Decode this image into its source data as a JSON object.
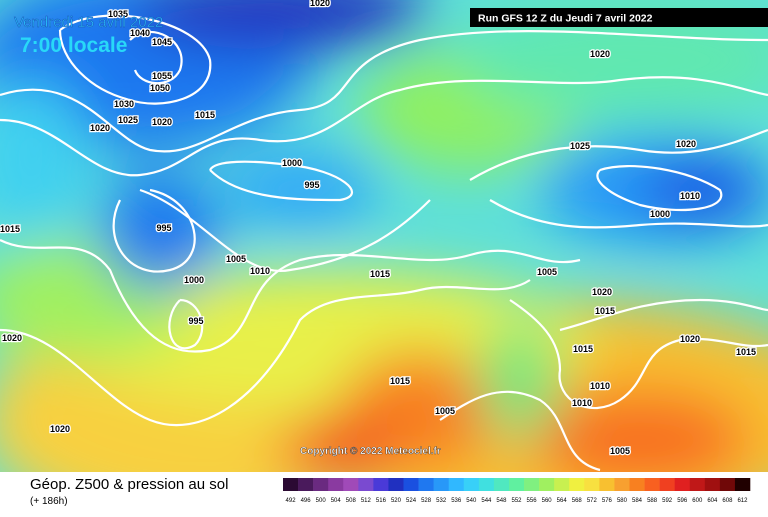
{
  "header": {
    "date": "Vendredi 15 avril 2022",
    "time": "7:00 locale",
    "run": "Run GFS 12 Z du Jeudi 7 avril 2022"
  },
  "copyright": "Copyright © 2022 Meteociel.fr",
  "footer": {
    "title": "Géop. Z500 & pression au sol",
    "lead": "(+ 186h)"
  },
  "isobar_labels": [
    "1020",
    "1035",
    "1040",
    "1045",
    "1055",
    "1050",
    "1030",
    "1025",
    "1020",
    "1015",
    "1000",
    "995",
    "995",
    "1005",
    "1010",
    "1000",
    "995",
    "1015",
    "1020",
    "1025",
    "1020",
    "1010",
    "1000",
    "1005",
    "1020",
    "1015",
    "1015",
    "1010",
    "1010",
    "1005",
    "1005",
    "1015",
    "1020",
    "1020",
    "1015",
    "1020",
    "1015",
    "1020"
  ],
  "scale": {
    "labels": [
      492,
      496,
      500,
      504,
      508,
      512,
      516,
      520,
      524,
      528,
      532,
      536,
      540,
      544,
      548,
      552,
      556,
      560,
      564,
      568,
      572,
      576,
      580,
      584,
      588,
      592,
      596,
      600,
      604,
      608,
      612
    ],
    "colors": [
      "#2b0a33",
      "#4a1a5c",
      "#6a2a80",
      "#8a3aa0",
      "#a04ab8",
      "#7a4ad0",
      "#4a3ad8",
      "#2030c0",
      "#1a50e0",
      "#1f78f0",
      "#2898f8",
      "#30b8ff",
      "#38d0f8",
      "#40e0e0",
      "#50e8c0",
      "#60f0a0",
      "#80f080",
      "#a0f060",
      "#c8f050",
      "#f0f040",
      "#f8e040",
      "#f8c030",
      "#f8a030",
      "#f88020",
      "#f86020",
      "#f04020",
      "#e02020",
      "#c01818",
      "#a01010",
      "#700808",
      "#200000"
    ]
  }
}
